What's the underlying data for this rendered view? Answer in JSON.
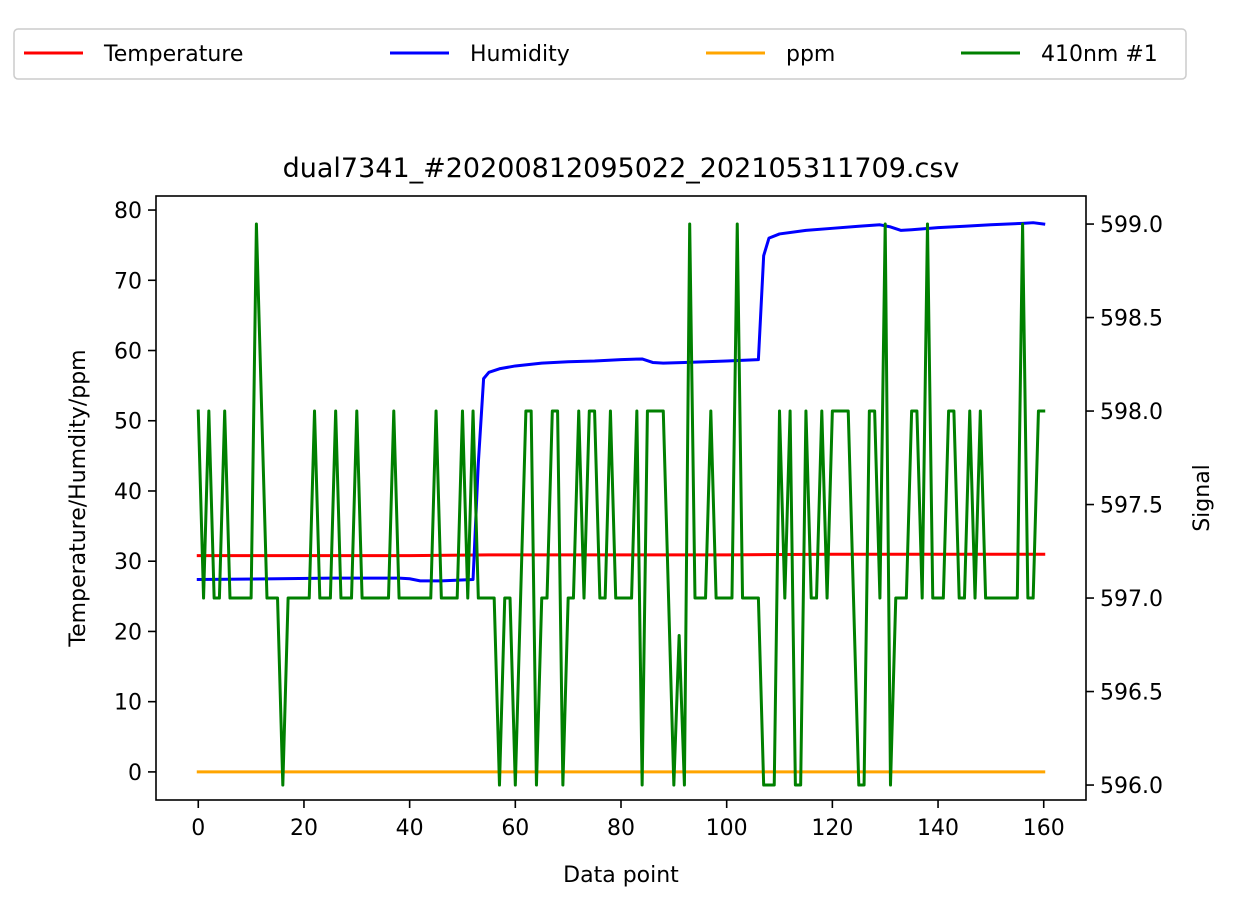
{
  "chart_data": {
    "type": "line",
    "title": "dual7341_#20200812095022_202105311709.csv",
    "xlabel": "Data point",
    "ylabel_left": "Temperature/Humdity/ppm",
    "ylabel_right": "Signal",
    "xlim": [
      -8,
      168
    ],
    "ylim_left": [
      -4,
      82
    ],
    "ylim_right": [
      595.92,
      599.15
    ],
    "x_ticks": [
      0,
      20,
      40,
      60,
      80,
      100,
      120,
      140,
      160
    ],
    "y_left_ticks": [
      0,
      10,
      20,
      30,
      40,
      50,
      60,
      70,
      80
    ],
    "y_right_ticks": [
      "596.0",
      "596.5",
      "597.0",
      "597.5",
      "598.0",
      "598.5",
      "599.0"
    ],
    "grid": false,
    "legend_placement": "top, outside plot",
    "series": [
      {
        "name": "Temperature",
        "color": "#ff0000",
        "axis": "left",
        "points": [
          [
            0,
            30.8
          ],
          [
            20,
            30.8
          ],
          [
            40,
            30.8
          ],
          [
            55,
            30.9
          ],
          [
            80,
            30.9
          ],
          [
            100,
            30.9
          ],
          [
            120,
            31.0
          ],
          [
            140,
            31.0
          ],
          [
            160,
            31.0
          ]
        ]
      },
      {
        "name": "Humidity",
        "color": "#0000ff",
        "axis": "left",
        "points": [
          [
            0,
            27.4
          ],
          [
            15,
            27.5
          ],
          [
            25,
            27.6
          ],
          [
            38,
            27.6
          ],
          [
            40,
            27.5
          ],
          [
            42,
            27.2
          ],
          [
            46,
            27.2
          ],
          [
            52,
            27.4
          ],
          [
            53,
            44
          ],
          [
            54,
            56
          ],
          [
            55,
            56.9
          ],
          [
            57,
            57.4
          ],
          [
            60,
            57.8
          ],
          [
            65,
            58.2
          ],
          [
            70,
            58.4
          ],
          [
            75,
            58.5
          ],
          [
            80,
            58.7
          ],
          [
            84,
            58.8
          ],
          [
            86,
            58.3
          ],
          [
            88,
            58.2
          ],
          [
            92,
            58.3
          ],
          [
            96,
            58.4
          ],
          [
            100,
            58.5
          ],
          [
            106,
            58.7
          ],
          [
            107,
            73.5
          ],
          [
            108,
            76
          ],
          [
            110,
            76.6
          ],
          [
            115,
            77.1
          ],
          [
            120,
            77.4
          ],
          [
            125,
            77.7
          ],
          [
            129,
            77.9
          ],
          [
            131,
            77.6
          ],
          [
            133,
            77.1
          ],
          [
            135,
            77.2
          ],
          [
            140,
            77.5
          ],
          [
            145,
            77.7
          ],
          [
            150,
            77.9
          ],
          [
            156,
            78.1
          ],
          [
            158,
            78.2
          ],
          [
            160,
            78.0
          ]
        ]
      },
      {
        "name": "ppm",
        "color": "#ffa500",
        "axis": "left",
        "points": [
          [
            0,
            0
          ],
          [
            160,
            0
          ]
        ]
      },
      {
        "name": "410nm #1",
        "color": "#008000",
        "axis": "right",
        "points": [
          [
            0,
            598
          ],
          [
            1,
            597
          ],
          [
            2,
            598
          ],
          [
            3,
            597
          ],
          [
            4,
            597
          ],
          [
            5,
            598
          ],
          [
            6,
            597
          ],
          [
            7,
            597
          ],
          [
            8,
            597
          ],
          [
            9,
            597
          ],
          [
            10,
            597
          ],
          [
            11,
            599
          ],
          [
            12,
            598
          ],
          [
            13,
            597
          ],
          [
            14,
            597
          ],
          [
            15,
            597
          ],
          [
            16,
            596
          ],
          [
            17,
            597
          ],
          [
            18,
            597
          ],
          [
            19,
            597
          ],
          [
            20,
            597
          ],
          [
            21,
            597
          ],
          [
            22,
            598
          ],
          [
            23,
            597
          ],
          [
            24,
            597
          ],
          [
            25,
            597
          ],
          [
            26,
            598
          ],
          [
            27,
            597
          ],
          [
            28,
            597
          ],
          [
            29,
            597
          ],
          [
            30,
            598
          ],
          [
            31,
            597
          ],
          [
            32,
            597
          ],
          [
            33,
            597
          ],
          [
            34,
            597
          ],
          [
            35,
            597
          ],
          [
            36,
            597
          ],
          [
            37,
            598
          ],
          [
            38,
            597
          ],
          [
            39,
            597
          ],
          [
            40,
            597
          ],
          [
            41,
            597
          ],
          [
            42,
            597
          ],
          [
            43,
            597
          ],
          [
            44,
            597
          ],
          [
            45,
            598
          ],
          [
            46,
            597
          ],
          [
            47,
            597
          ],
          [
            48,
            597
          ],
          [
            49,
            597
          ],
          [
            50,
            598
          ],
          [
            51,
            597
          ],
          [
            52,
            598
          ],
          [
            53,
            597
          ],
          [
            54,
            597
          ],
          [
            55,
            597
          ],
          [
            56,
            597
          ],
          [
            57,
            596
          ],
          [
            58,
            597
          ],
          [
            59,
            597
          ],
          [
            60,
            596
          ],
          [
            61,
            597
          ],
          [
            62,
            598
          ],
          [
            63,
            598
          ],
          [
            64,
            596
          ],
          [
            65,
            597
          ],
          [
            66,
            597
          ],
          [
            67,
            598
          ],
          [
            68,
            598
          ],
          [
            69,
            596
          ],
          [
            70,
            597
          ],
          [
            71,
            597
          ],
          [
            72,
            598
          ],
          [
            73,
            597
          ],
          [
            74,
            598
          ],
          [
            75,
            598
          ],
          [
            76,
            597
          ],
          [
            77,
            597
          ],
          [
            78,
            598
          ],
          [
            79,
            597
          ],
          [
            80,
            597
          ],
          [
            81,
            597
          ],
          [
            82,
            597
          ],
          [
            83,
            598
          ],
          [
            84,
            596
          ],
          [
            85,
            598
          ],
          [
            86,
            598
          ],
          [
            87,
            598
          ],
          [
            88,
            598
          ],
          [
            89,
            597
          ],
          [
            90,
            596
          ],
          [
            91,
            596.8
          ],
          [
            92,
            596
          ],
          [
            93,
            599
          ],
          [
            94,
            597
          ],
          [
            95,
            597
          ],
          [
            96,
            597
          ],
          [
            97,
            598
          ],
          [
            98,
            597
          ],
          [
            99,
            597
          ],
          [
            100,
            597
          ],
          [
            101,
            597
          ],
          [
            102,
            599
          ],
          [
            103,
            597
          ],
          [
            104,
            597
          ],
          [
            105,
            597
          ],
          [
            106,
            597
          ],
          [
            107,
            596
          ],
          [
            108,
            596
          ],
          [
            109,
            596
          ],
          [
            110,
            598
          ],
          [
            111,
            597
          ],
          [
            112,
            598
          ],
          [
            113,
            596
          ],
          [
            114,
            596
          ],
          [
            115,
            598
          ],
          [
            116,
            597
          ],
          [
            117,
            597
          ],
          [
            118,
            598
          ],
          [
            119,
            597
          ],
          [
            120,
            598
          ],
          [
            121,
            598
          ],
          [
            122,
            598
          ],
          [
            123,
            598
          ],
          [
            124,
            597
          ],
          [
            125,
            596
          ],
          [
            126,
            596
          ],
          [
            127,
            598
          ],
          [
            128,
            598
          ],
          [
            129,
            597
          ],
          [
            130,
            599
          ],
          [
            131,
            596
          ],
          [
            132,
            597
          ],
          [
            133,
            597
          ],
          [
            134,
            597
          ],
          [
            135,
            598
          ],
          [
            136,
            598
          ],
          [
            137,
            597
          ],
          [
            138,
            599
          ],
          [
            139,
            597
          ],
          [
            140,
            597
          ],
          [
            141,
            597
          ],
          [
            142,
            598
          ],
          [
            143,
            598
          ],
          [
            144,
            597
          ],
          [
            145,
            597
          ],
          [
            146,
            598
          ],
          [
            147,
            597
          ],
          [
            148,
            598
          ],
          [
            149,
            597
          ],
          [
            150,
            597
          ],
          [
            151,
            597
          ],
          [
            152,
            597
          ],
          [
            153,
            597
          ],
          [
            154,
            597
          ],
          [
            155,
            597
          ],
          [
            156,
            599
          ],
          [
            157,
            597
          ],
          [
            158,
            597
          ],
          [
            159,
            598
          ],
          [
            160,
            598
          ]
        ]
      }
    ]
  }
}
